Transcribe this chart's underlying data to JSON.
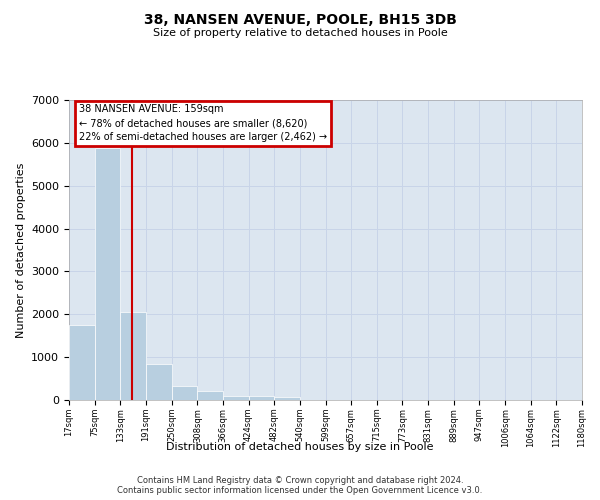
{
  "title": "38, NANSEN AVENUE, POOLE, BH15 3DB",
  "subtitle": "Size of property relative to detached houses in Poole",
  "xlabel": "Distribution of detached houses by size in Poole",
  "ylabel": "Number of detached properties",
  "footer_line1": "Contains HM Land Registry data © Crown copyright and database right 2024.",
  "footer_line2": "Contains public sector information licensed under the Open Government Licence v3.0.",
  "annotation_line1": "38 NANSEN AVENUE: 159sqm",
  "annotation_line2": "← 78% of detached houses are smaller (8,620)",
  "annotation_line3": "22% of semi-detached houses are larger (2,462) →",
  "property_size": 159,
  "bar_edges": [
    17,
    75,
    133,
    191,
    250,
    308,
    366,
    424,
    482,
    540,
    599,
    657,
    715,
    773,
    831,
    889,
    947,
    1006,
    1064,
    1122,
    1180
  ],
  "bar_heights": [
    1740,
    5880,
    2060,
    830,
    330,
    200,
    100,
    90,
    60,
    0,
    0,
    0,
    0,
    0,
    0,
    0,
    0,
    0,
    0,
    0
  ],
  "bar_color": "#b8cfe0",
  "bar_edgecolor": "white",
  "grid_color": "#c8d4e8",
  "background_color": "#dce6f0",
  "annotation_box_color": "#cc0000",
  "red_line_color": "#cc0000",
  "ylim": [
    0,
    7000
  ],
  "yticks": [
    0,
    1000,
    2000,
    3000,
    4000,
    5000,
    6000,
    7000
  ]
}
